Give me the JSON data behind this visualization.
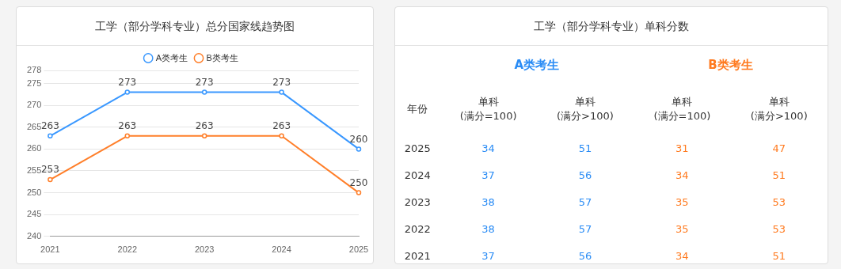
{
  "chart_data": [
    {
      "type": "line",
      "title": "工学（部分学科专业）总分国家线趋势图",
      "categories": [
        "2021",
        "2022",
        "2023",
        "2024",
        "2025"
      ],
      "series": [
        {
          "name": "A类考生",
          "color": "#3a98ff",
          "values": [
            263,
            273,
            273,
            273,
            260
          ]
        },
        {
          "name": "B类考生",
          "color": "#ff7f2a",
          "values": [
            253,
            263,
            263,
            263,
            250
          ]
        }
      ],
      "ylim": [
        240,
        278
      ],
      "yticks": [
        240,
        245,
        250,
        255,
        260,
        265,
        270,
        275,
        278
      ],
      "grid": "y",
      "legend": "top",
      "marker": "circle",
      "data_labels": true
    },
    {
      "type": "heatmap",
      "title": "工学（部分学科专业）单科分数",
      "ylabel": "年份",
      "annotations": [
        "A类考生",
        "B类考生"
      ],
      "categories": [
        "单科\n(满分=100)",
        "单科\n(满分>100)",
        "单科\n(满分=100)",
        "单科\n(满分>100)"
      ],
      "colors": [
        "#2a8cf5",
        "#2a8cf5",
        "#ff7a1f",
        "#ff7a1f"
      ],
      "y_categories": [
        "2025",
        "2024",
        "2023",
        "2022",
        "2021"
      ],
      "cells": [
        [
          34,
          51,
          31,
          47
        ],
        [
          37,
          56,
          34,
          51
        ],
        [
          38,
          57,
          35,
          53
        ],
        [
          38,
          57,
          35,
          53
        ],
        [
          37,
          56,
          34,
          51
        ]
      ],
      "data_labels": true
    }
  ]
}
